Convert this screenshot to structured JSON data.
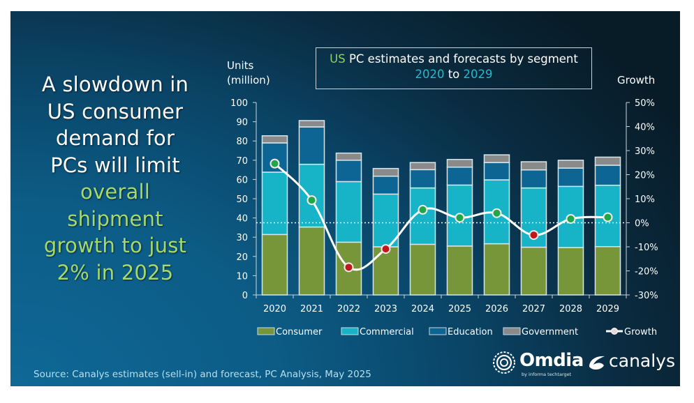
{
  "headline": {
    "lines_white": [
      "A slowdown in",
      "US consumer",
      "demand for",
      "PCs will limit"
    ],
    "lines_green": [
      "overall",
      "shipment",
      "growth to just",
      "2% in 2025"
    ]
  },
  "title_box": {
    "part_us": "US",
    "part_main": "PC estimates and forecasts by segment",
    "year_start": "2020",
    "to": "to",
    "year_end": "2029"
  },
  "source": "Source: Canalys estimates (sell-in) and forecast, PC Analysis, May 2025",
  "logos": {
    "omdia": "Omdia",
    "omdia_sub": "by informa techtarget",
    "canalys": "canalys"
  },
  "colors": {
    "consumer": "#77963a",
    "commercial": "#17b4c8",
    "education": "#0c6593",
    "government": "#8a8a8a",
    "bar_outline": "#d8e6ea",
    "growth_line": "#ffffff",
    "growth_pos": "#1ea84a",
    "growth_neg": "#c0161c",
    "text_green": "#a6d86e",
    "text_cyan": "#27b8cc"
  },
  "chart_data": {
    "type": "bar",
    "stacked": true,
    "title": "US PC estimates and forecasts by segment 2020 to 2029",
    "categories": [
      "2020",
      "2021",
      "2022",
      "2023",
      "2024",
      "2025",
      "2026",
      "2027",
      "2028",
      "2029"
    ],
    "ylabel": "Units (million)",
    "ylabel_lines": [
      "Units",
      "(million)"
    ],
    "ylim": [
      0,
      100
    ],
    "yticks": [
      0,
      10,
      20,
      30,
      40,
      50,
      60,
      70,
      80,
      90,
      100
    ],
    "y2label": "Growth",
    "y2lim": [
      -30,
      50
    ],
    "y2ticks": [
      "-30%",
      "-20%",
      "-10%",
      "0%",
      "10%",
      "20%",
      "30%",
      "40%",
      "50%"
    ],
    "y2tick_values": [
      -30,
      -20,
      -10,
      0,
      10,
      20,
      30,
      40,
      50
    ],
    "series": [
      {
        "name": "Consumer",
        "type": "bar",
        "values": [
          31.4,
          35.3,
          27.4,
          25.0,
          26.3,
          25.4,
          26.6,
          24.8,
          24.6,
          25.1
        ]
      },
      {
        "name": "Commercial",
        "type": "bar",
        "values": [
          32.4,
          32.6,
          31.5,
          27.4,
          29.3,
          31.7,
          33.2,
          30.8,
          31.8,
          31.9
        ]
      },
      {
        "name": "Education",
        "type": "bar",
        "values": [
          15.2,
          19.4,
          11.1,
          9.3,
          9.5,
          9.3,
          9.0,
          9.4,
          9.5,
          10.4
        ]
      },
      {
        "name": "Government",
        "type": "bar",
        "values": [
          3.7,
          3.3,
          3.7,
          4.0,
          3.7,
          4.0,
          4.0,
          4.2,
          4.1,
          4.2
        ]
      },
      {
        "name": "Growth",
        "type": "line",
        "axis": "right",
        "unit": "%",
        "values": [
          24.6,
          9.4,
          -18.5,
          -10.9,
          5.4,
          2.1,
          4.0,
          -5.1,
          1.6,
          2.3
        ]
      }
    ],
    "legend": [
      "Consumer",
      "Commercial",
      "Education",
      "Government",
      "Growth"
    ],
    "legend_position": "bottom",
    "zero_growth_reference_line": "dotted",
    "grid": false
  }
}
